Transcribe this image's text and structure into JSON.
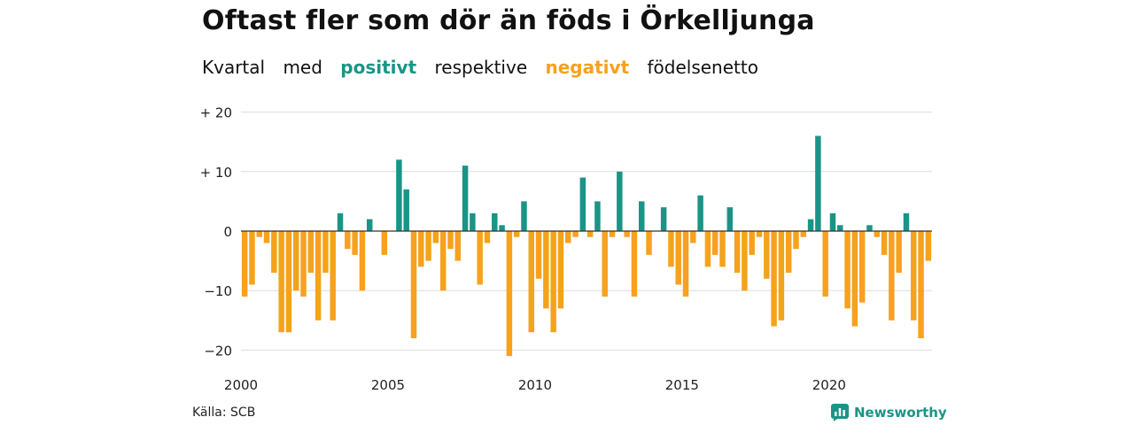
{
  "title": "Oftast fler som dör än föds i Örkelljunga",
  "subtitle": {
    "part1": "Kvartal",
    "part2": "med",
    "positive_word": "positivt",
    "part3": "respektive",
    "negative_word": "negativt",
    "part4": "födelsenetto"
  },
  "source": "Källa: SCB",
  "brand": {
    "name": "Newsworthy",
    "icon": "newsworthy-logo-icon"
  },
  "colors": {
    "positive": "#1a9486",
    "negative": "#f5a21d",
    "brand": "#1a9486"
  },
  "chart_data": {
    "type": "bar",
    "x_start": "2000 Q1",
    "x_ticks": [
      "2000",
      "2005",
      "2010",
      "2015",
      "2020"
    ],
    "y_ticks": [
      "+ 20",
      "+ 10",
      "0",
      "−10",
      "−20"
    ],
    "y_tick_values": [
      20,
      10,
      0,
      -10,
      -20
    ],
    "ylim": [
      -22,
      20
    ],
    "grid": true,
    "values": [
      -11,
      -9,
      -1,
      -2,
      -7,
      -17,
      -17,
      -10,
      -11,
      -7,
      -15,
      -7,
      -15,
      3,
      -3,
      -4,
      -10,
      2,
      0,
      -4,
      0,
      12,
      7,
      -18,
      -6,
      -5,
      -2,
      -10,
      -3,
      -5,
      11,
      3,
      -9,
      -2,
      3,
      1,
      -21,
      -1,
      5,
      -17,
      -8,
      -13,
      -17,
      -13,
      -2,
      -1,
      9,
      -1,
      5,
      -11,
      -1,
      10,
      -1,
      -11,
      5,
      -4,
      0,
      4,
      -6,
      -9,
      -11,
      -2,
      6,
      -6,
      -4,
      -6,
      4,
      -7,
      -10,
      -4,
      -1,
      -8,
      -16,
      -15,
      -7,
      -3,
      -1,
      2,
      16,
      -11,
      3,
      1,
      -13,
      -16,
      -12,
      1,
      -1,
      -4,
      -15,
      -7,
      3,
      -15,
      -18,
      -5
    ]
  }
}
